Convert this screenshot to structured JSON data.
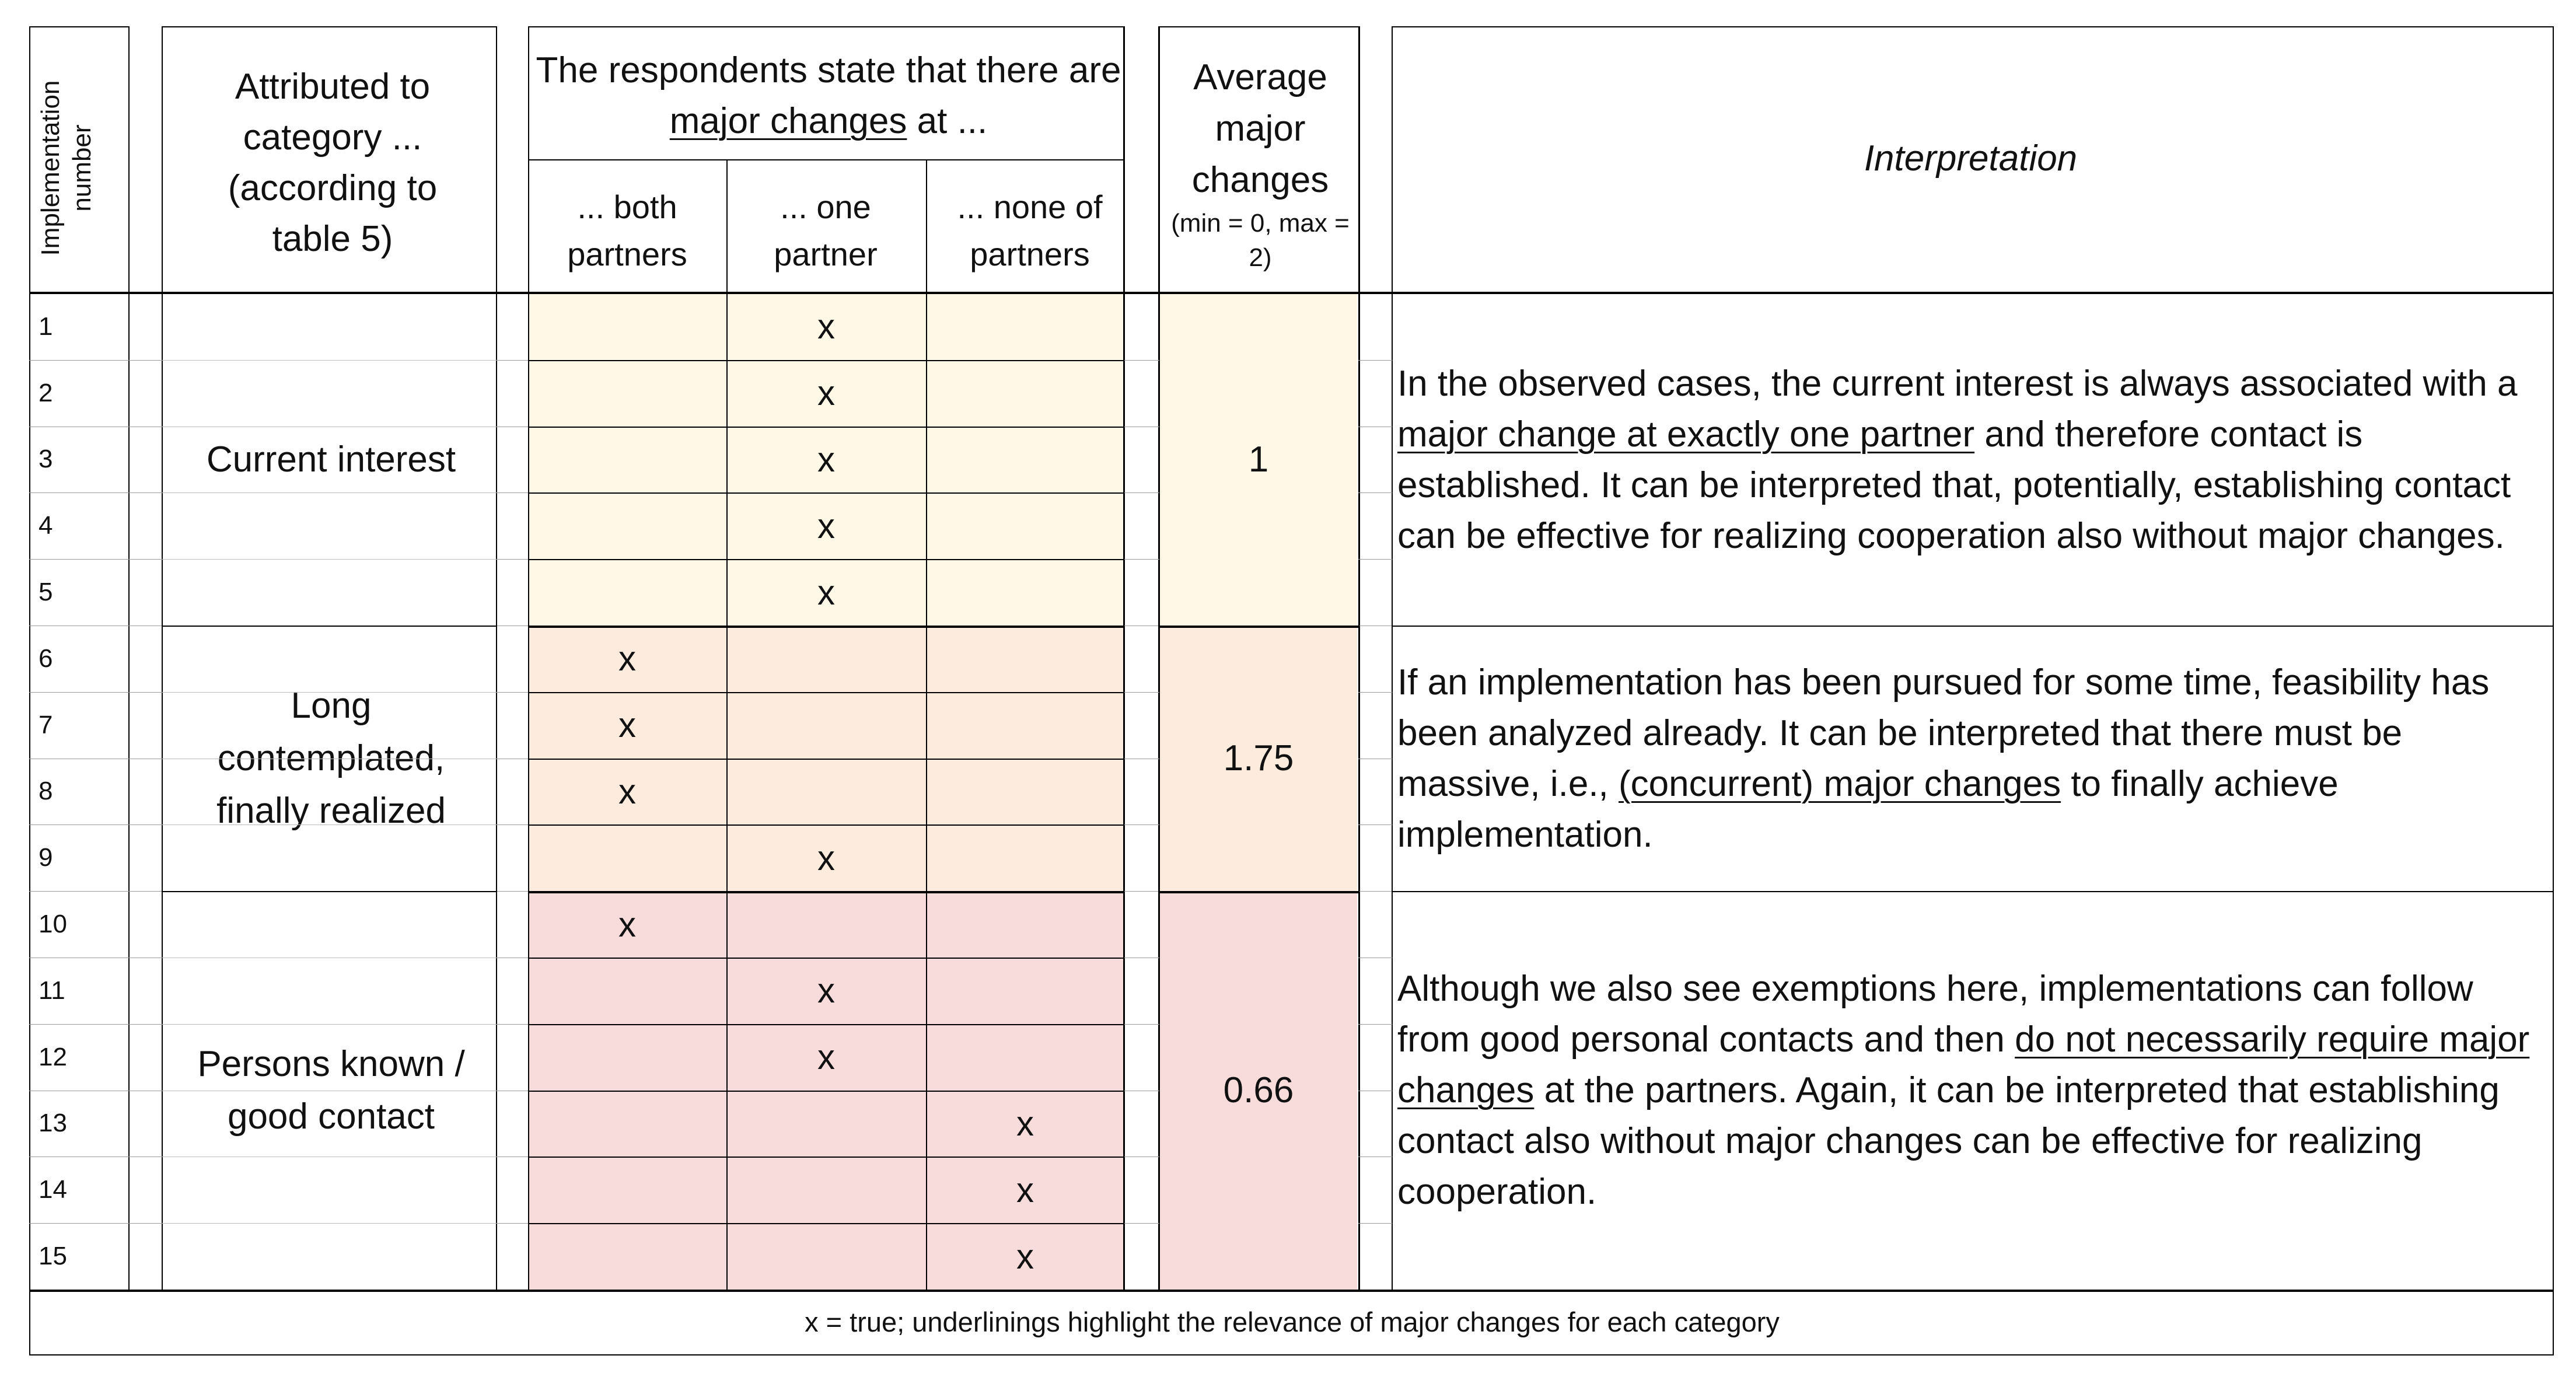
{
  "colors": {
    "band1": "#fff8e6",
    "band2": "#fdebde",
    "band3": "#f8dcdc",
    "line": "#000000"
  },
  "headers": {
    "impl_number": "Implementation number",
    "attributed": "Attributed to category ... (according to table 5)",
    "respondents_prefix": "The respondents state that there are",
    "respondents_underlined": "major changes",
    "respondents_suffix": "at ...",
    "sub_both": "... both partners",
    "sub_one": "... one partner",
    "sub_none": "... none of partners",
    "average_main": "Average major changes",
    "average_range": "(min = 0, max = 2)",
    "interpretation": "Interpretation"
  },
  "rows": [
    {
      "n": "1",
      "both": "",
      "one": "x",
      "none": ""
    },
    {
      "n": "2",
      "both": "",
      "one": "x",
      "none": ""
    },
    {
      "n": "3",
      "both": "",
      "one": "x",
      "none": ""
    },
    {
      "n": "4",
      "both": "",
      "one": "x",
      "none": ""
    },
    {
      "n": "5",
      "both": "",
      "one": "x",
      "none": ""
    },
    {
      "n": "6",
      "both": "x",
      "one": "",
      "none": ""
    },
    {
      "n": "7",
      "both": "x",
      "one": "",
      "none": ""
    },
    {
      "n": "8",
      "both": "x",
      "one": "",
      "none": ""
    },
    {
      "n": "9",
      "both": "",
      "one": "x",
      "none": ""
    },
    {
      "n": "10",
      "both": "x",
      "one": "",
      "none": ""
    },
    {
      "n": "11",
      "both": "",
      "one": "x",
      "none": ""
    },
    {
      "n": "12",
      "both": "",
      "one": "x",
      "none": ""
    },
    {
      "n": "13",
      "both": "",
      "one": "",
      "none": "x"
    },
    {
      "n": "14",
      "both": "",
      "one": "",
      "none": "x"
    },
    {
      "n": "15",
      "both": "",
      "one": "",
      "none": "x"
    }
  ],
  "groups": [
    {
      "category": "Current interest",
      "average": "1",
      "interpretation": [
        {
          "text": "In the observed cases, the current interest is always associated with a "
        },
        {
          "text": "major change at exactly one partner",
          "u": true
        },
        {
          "text": " and therefore contact is established. It can be interpreted that, potentially, establishing contact can be effective for realizing cooperation  also without major changes."
        }
      ]
    },
    {
      "category": "Long contemplated, finally realized",
      "average": "1.75",
      "interpretation": [
        {
          "text": "If an implementation has been pursued for some time, feasibility has been analyzed already. It can be interpreted that there must be massive, i.e., "
        },
        {
          "text": "(concurrent) major changes",
          "u": true
        },
        {
          "text": " to finally achieve implementation."
        }
      ]
    },
    {
      "category": "Persons known / good contact",
      "average": "0.66",
      "interpretation": [
        {
          "text": "Although we also see exemptions here, implementations can follow from good personal contacts and then "
        },
        {
          "text": "do not necessarily require major changes",
          "u": true
        },
        {
          "text": " at the partners. Again, it can be interpreted that establishing contact also without major changes can be effective for realizing cooperation."
        }
      ]
    }
  ],
  "footnote": "x = true; underlinings highlight the relevance of major changes for each category"
}
